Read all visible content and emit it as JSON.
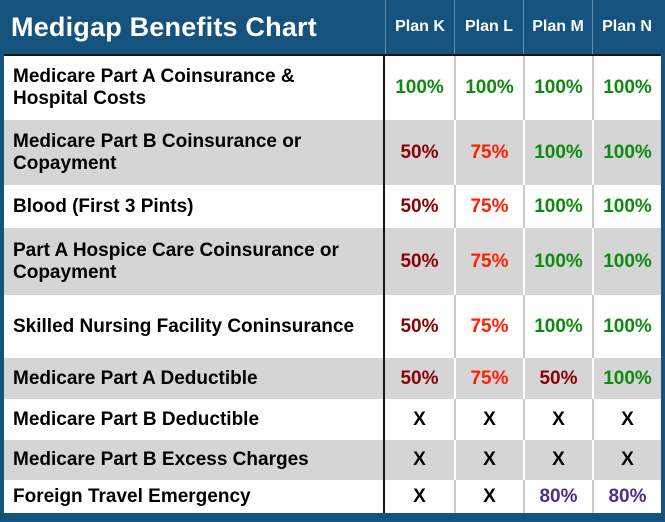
{
  "title": "Medigap Benefits Chart",
  "columns": [
    "Plan K",
    "Plan L",
    "Plan M",
    "Plan N"
  ],
  "chart_data": {
    "type": "table",
    "title": "Medigap Benefits Chart",
    "column_headers": [
      "Plan K",
      "Plan L",
      "Plan M",
      "Plan N"
    ],
    "rows": [
      {
        "benefit": "Medicare Part A Coinsurance & Hospital Costs",
        "values": [
          "100%",
          "100%",
          "100%",
          "100%"
        ]
      },
      {
        "benefit": "Medicare Part B Coinsurance or Copayment",
        "values": [
          "50%",
          "75%",
          "100%",
          "100%"
        ]
      },
      {
        "benefit": "Blood (First 3 Pints)",
        "values": [
          "50%",
          "75%",
          "100%",
          "100%"
        ]
      },
      {
        "benefit": "Part A Hospice Care Coinsurance or Copayment",
        "values": [
          "50%",
          "75%",
          "100%",
          "100%"
        ]
      },
      {
        "benefit": "Skilled Nursing Facility Coninsurance",
        "values": [
          "50%",
          "75%",
          "100%",
          "100%"
        ]
      },
      {
        "benefit": "Medicare Part A Deductible",
        "values": [
          "50%",
          "75%",
          "50%",
          "100%"
        ]
      },
      {
        "benefit": "Medicare Part B Deductible",
        "values": [
          "X",
          "X",
          "X",
          "X"
        ]
      },
      {
        "benefit": "Medicare Part B Excess Charges",
        "values": [
          "X",
          "X",
          "X",
          "X"
        ]
      },
      {
        "benefit": "Foreign Travel Emergency",
        "values": [
          "X",
          "X",
          "80%",
          "80%"
        ]
      }
    ]
  },
  "rows": [
    {
      "label": "Medicare Part A Coinsurance & Hospital Costs",
      "values": [
        {
          "text": "100%",
          "color": "green"
        },
        {
          "text": "100%",
          "color": "green"
        },
        {
          "text": "100%",
          "color": "green"
        },
        {
          "text": "100%",
          "color": "green"
        }
      ]
    },
    {
      "label": "Medicare Part B Coinsurance or Copayment",
      "values": [
        {
          "text": "50%",
          "color": "maroon"
        },
        {
          "text": "75%",
          "color": "red"
        },
        {
          "text": "100%",
          "color": "green"
        },
        {
          "text": "100%",
          "color": "green"
        }
      ]
    },
    {
      "label": "Blood (First 3 Pints)",
      "values": [
        {
          "text": "50%",
          "color": "maroon"
        },
        {
          "text": "75%",
          "color": "red"
        },
        {
          "text": "100%",
          "color": "green"
        },
        {
          "text": "100%",
          "color": "green"
        }
      ]
    },
    {
      "label": "Part A Hospice Care Coinsurance or Copayment",
      "values": [
        {
          "text": "50%",
          "color": "maroon"
        },
        {
          "text": "75%",
          "color": "red"
        },
        {
          "text": "100%",
          "color": "green"
        },
        {
          "text": "100%",
          "color": "green"
        }
      ]
    },
    {
      "label": "Skilled Nursing Facility Coninsurance",
      "values": [
        {
          "text": "50%",
          "color": "maroon"
        },
        {
          "text": "75%",
          "color": "red"
        },
        {
          "text": "100%",
          "color": "green"
        },
        {
          "text": "100%",
          "color": "green"
        }
      ]
    },
    {
      "label": "Medicare Part A Deductible",
      "values": [
        {
          "text": "50%",
          "color": "maroon"
        },
        {
          "text": "75%",
          "color": "red"
        },
        {
          "text": "50%",
          "color": "maroon"
        },
        {
          "text": "100%",
          "color": "green"
        }
      ]
    },
    {
      "label": "Medicare Part B Deductible",
      "values": [
        {
          "text": "X",
          "color": "black"
        },
        {
          "text": "X",
          "color": "black"
        },
        {
          "text": "X",
          "color": "black"
        },
        {
          "text": "X",
          "color": "black"
        }
      ]
    },
    {
      "label": "Medicare Part B Excess Charges",
      "values": [
        {
          "text": "X",
          "color": "black"
        },
        {
          "text": "X",
          "color": "black"
        },
        {
          "text": "X",
          "color": "black"
        },
        {
          "text": "X",
          "color": "black"
        }
      ]
    },
    {
      "label": "Foreign Travel Emergency",
      "values": [
        {
          "text": "X",
          "color": "black"
        },
        {
          "text": "X",
          "color": "black"
        },
        {
          "text": "80%",
          "color": "purple"
        },
        {
          "text": "80%",
          "color": "purple"
        }
      ]
    }
  ],
  "colors": {
    "header_blue": "#15527E",
    "row_gray": "#D5D5D5",
    "row_white": "#FFFFFF",
    "green": "#0E8A0E",
    "maroon": "#8B0000",
    "red": "#FF1E00",
    "purple": "#4F2D8E",
    "black": "#000000"
  }
}
